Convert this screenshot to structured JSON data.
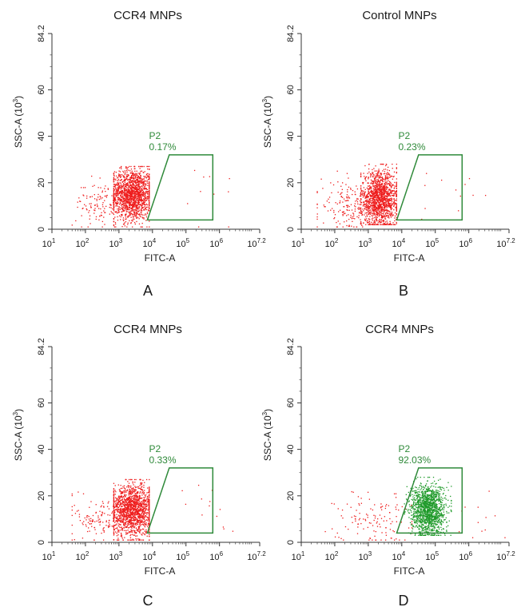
{
  "chart_data": [
    {
      "type": "scatter",
      "panel_label": "A",
      "title": "CCR4 MNPs",
      "xlabel": "FITC-A",
      "ylabel": "SSC-A",
      "ylabel_unit": "(10",
      "ylabel_exp": "3",
      "ylabel_close": ")",
      "xscale": "log",
      "xlim": [
        10,
        15848931.92
      ],
      "ylim": [
        0,
        84.2
      ],
      "x_tick_bases": [
        "10",
        "10",
        "10",
        "10",
        "10",
        "10",
        "10"
      ],
      "x_tick_exps": [
        "1",
        "2",
        "3",
        "4",
        "5",
        "6",
        "7.2"
      ],
      "x_tick_values": [
        10,
        100,
        1000,
        10000,
        100000,
        1000000,
        15848931.92
      ],
      "y_ticks": [
        "0",
        "20",
        "40",
        "60",
        "84.2"
      ],
      "y_tick_values": [
        0,
        20,
        40,
        60,
        84.2
      ],
      "gate": {
        "name": "P2",
        "percent": "0.17%",
        "polygon": [
          [
            31623,
            32
          ],
          [
            630957,
            32
          ],
          [
            630957,
            4
          ],
          [
            7079,
            4
          ]
        ]
      },
      "populations": [
        {
          "color": "#ee1c1c",
          "n": 1500,
          "center": [
            2500,
            15
          ],
          "log_spread": 0.32,
          "y_spread": 5.5,
          "y_min": 1,
          "y_max": 27,
          "x_min": 700,
          "x_max": 8000
        },
        {
          "color": "#ee1c1c",
          "n": 160,
          "center": [
            400,
            11
          ],
          "log_spread": 0.45,
          "y_spread": 5,
          "y_min": 1,
          "y_max": 26,
          "x_min": 40,
          "x_max": 6000
        },
        {
          "color": "#ee1c1c",
          "n": 10,
          "center": [
            500000,
            14
          ],
          "log_spread": 0.45,
          "y_spread": 7,
          "y_min": 1,
          "y_max": 26,
          "x_min": 20000,
          "x_max": 3000000
        }
      ]
    },
    {
      "type": "scatter",
      "panel_label": "B",
      "title": "Control MNPs",
      "xlabel": "FITC-A",
      "ylabel": "SSC-A",
      "ylabel_unit": "(10",
      "ylabel_exp": "3",
      "ylabel_close": ")",
      "xscale": "log",
      "xlim": [
        10,
        15848931.92
      ],
      "ylim": [
        0,
        84.2
      ],
      "x_tick_bases": [
        "10",
        "10",
        "10",
        "10",
        "10",
        "10",
        "10"
      ],
      "x_tick_exps": [
        "1",
        "2",
        "3",
        "4",
        "5",
        "6",
        "7.2"
      ],
      "x_tick_values": [
        10,
        100,
        1000,
        10000,
        100000,
        1000000,
        15848931.92
      ],
      "y_ticks": [
        "0",
        "20",
        "40",
        "60",
        "84.2"
      ],
      "y_tick_values": [
        0,
        20,
        40,
        60,
        84.2
      ],
      "gate": {
        "name": "P2",
        "percent": "0.23%",
        "polygon": [
          [
            31623,
            32
          ],
          [
            630957,
            32
          ],
          [
            630957,
            4
          ],
          [
            7079,
            4
          ]
        ]
      },
      "populations": [
        {
          "color": "#ee1c1c",
          "n": 1400,
          "center": [
            2200,
            13
          ],
          "log_spread": 0.28,
          "y_spread": 6,
          "y_min": 2,
          "y_max": 28,
          "x_min": 600,
          "x_max": 7000
        },
        {
          "color": "#ee1c1c",
          "n": 200,
          "center": [
            300,
            10
          ],
          "log_spread": 0.45,
          "y_spread": 5,
          "y_min": 1,
          "y_max": 25,
          "x_min": 30,
          "x_max": 5000
        },
        {
          "color": "#ee1c1c",
          "n": 12,
          "center": [
            300000,
            14
          ],
          "log_spread": 0.55,
          "y_spread": 6,
          "y_min": 2,
          "y_max": 24,
          "x_min": 15000,
          "x_max": 10000000
        }
      ]
    },
    {
      "type": "scatter",
      "panel_label": "C",
      "title": "CCR4 MNPs",
      "xlabel": "FITC-A",
      "ylabel": "SSC-A",
      "ylabel_unit": "(10",
      "ylabel_exp": "3",
      "ylabel_close": ")",
      "xscale": "log",
      "xlim": [
        10,
        15848931.92
      ],
      "ylim": [
        0,
        84.2
      ],
      "x_tick_bases": [
        "10",
        "10",
        "10",
        "10",
        "10",
        "10",
        "10"
      ],
      "x_tick_exps": [
        "1",
        "2",
        "3",
        "4",
        "5",
        "6",
        "7.2"
      ],
      "x_tick_values": [
        10,
        100,
        1000,
        10000,
        100000,
        1000000,
        15848931.92
      ],
      "y_ticks": [
        "0",
        "20",
        "40",
        "60",
        "84.2"
      ],
      "y_tick_values": [
        0,
        20,
        40,
        60,
        84.2
      ],
      "gate": {
        "name": "P2",
        "percent": "0.33%",
        "polygon": [
          [
            31623,
            32
          ],
          [
            630957,
            32
          ],
          [
            630957,
            4
          ],
          [
            7079,
            4
          ]
        ]
      },
      "populations": [
        {
          "color": "#ee1c1c",
          "n": 1500,
          "center": [
            2500,
            14
          ],
          "log_spread": 0.32,
          "y_spread": 5.5,
          "y_min": 1,
          "y_max": 27,
          "x_min": 700,
          "x_max": 8000
        },
        {
          "color": "#ee1c1c",
          "n": 160,
          "center": [
            400,
            10
          ],
          "log_spread": 0.45,
          "y_spread": 5,
          "y_min": 1,
          "y_max": 26,
          "x_min": 40,
          "x_max": 6000
        },
        {
          "color": "#ee1c1c",
          "n": 14,
          "center": [
            500000,
            14
          ],
          "log_spread": 0.5,
          "y_spread": 7,
          "y_min": 1,
          "y_max": 26,
          "x_min": 20000,
          "x_max": 5000000
        }
      ]
    },
    {
      "type": "scatter",
      "panel_label": "D",
      "title": "CCR4 MNPs",
      "xlabel": "FITC-A",
      "ylabel": "SSC-A",
      "ylabel_unit": "(10",
      "ylabel_exp": "3",
      "ylabel_close": ")",
      "xscale": "log",
      "xlim": [
        10,
        15848931.92
      ],
      "ylim": [
        0,
        84.2
      ],
      "x_tick_bases": [
        "10",
        "10",
        "10",
        "10",
        "10",
        "10",
        "10"
      ],
      "x_tick_exps": [
        "1",
        "2",
        "3",
        "4",
        "5",
        "6",
        "7.2"
      ],
      "x_tick_values": [
        10,
        100,
        1000,
        10000,
        100000,
        1000000,
        15848931.92
      ],
      "y_ticks": [
        "0",
        "20",
        "40",
        "60",
        "84.2"
      ],
      "y_tick_values": [
        0,
        20,
        40,
        60,
        84.2
      ],
      "gate": {
        "name": "P2",
        "percent": "92.03%",
        "polygon": [
          [
            31623,
            32
          ],
          [
            630957,
            32
          ],
          [
            630957,
            4
          ],
          [
            7079,
            4
          ]
        ]
      },
      "populations": [
        {
          "color": "#1f9a2a",
          "n": 1400,
          "center": [
            60000,
            14
          ],
          "log_spread": 0.26,
          "y_spread": 5.5,
          "y_min": 3,
          "y_max": 28,
          "x_min": 12000,
          "x_max": 300000
        },
        {
          "color": "#ee1c1c",
          "n": 130,
          "center": [
            1500,
            10
          ],
          "log_spread": 0.55,
          "y_spread": 6,
          "y_min": 1,
          "y_max": 28,
          "x_min": 40,
          "x_max": 20000
        },
        {
          "color": "#ee1c1c",
          "n": 12,
          "center": [
            1500000,
            12
          ],
          "log_spread": 0.35,
          "y_spread": 5,
          "y_min": 2,
          "y_max": 22,
          "x_min": 400000,
          "x_max": 12000000
        }
      ]
    }
  ]
}
